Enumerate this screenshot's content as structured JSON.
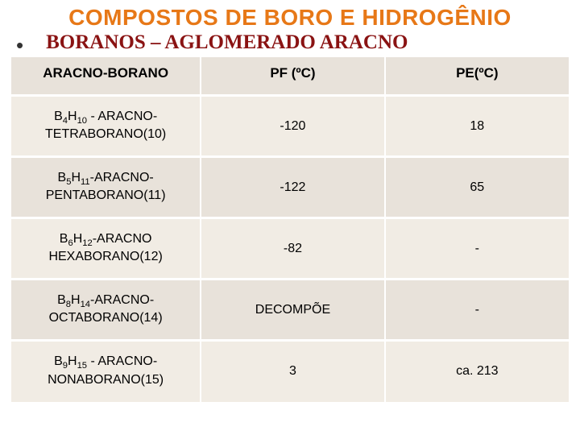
{
  "colors": {
    "title": "#e77817",
    "subtitle": "#8a1313",
    "header_bg": "#e8e2da",
    "zebra_light": "#f1ece4",
    "zebra_dark": "#e8e2da"
  },
  "title": "COMPOSTOS DE BORO E HIDROGÊNIO",
  "subtitle": "BORANOS – AGLOMERADO ARACNO",
  "table": {
    "headers": [
      "ARACNO-BORANO",
      "PF (ºC)",
      "PE(ºC)"
    ],
    "rows": [
      {
        "name_html": "B<sub>4</sub>H<sub>10</sub> - ARACNO-TETRABORANO(10)",
        "pf": "-120",
        "pe": "18"
      },
      {
        "name_html": "B<sub>5</sub>H<sub>11</sub>-ARACNO-PENTABORANO(11)",
        "pf": "-122",
        "pe": "65"
      },
      {
        "name_html": "B<sub>6</sub>H<sub>12</sub>-ARACNO HEXABORANO(12)",
        "pf": "-82",
        "pe": "-"
      },
      {
        "name_html": "B<sub>8</sub>H<sub>14</sub>-ARACNO-OCTABORANO(14)",
        "pf": "DECOMPÕE",
        "pe": "-"
      },
      {
        "name_html": "B<sub>9</sub>H<sub>15</sub> - ARACNO-NONABORANO(15)",
        "pf": "3",
        "pe": "ca. 213"
      }
    ]
  }
}
